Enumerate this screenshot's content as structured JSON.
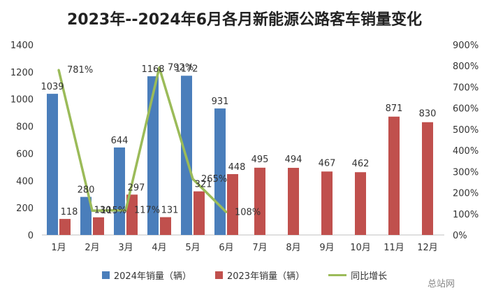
{
  "chart_data": {
    "type": "bar",
    "title": "2023年--2024年6月各月新能源公路客车销量变化",
    "categories": [
      "1月",
      "2月",
      "3月",
      "4月",
      "5月",
      "6月",
      "7月",
      "8月",
      "9月",
      "10月",
      "11月",
      "12月"
    ],
    "series": [
      {
        "name": "2024年销量（辆）",
        "type": "bar",
        "color": "#4a7ebb",
        "values": [
          1039,
          280,
          644,
          1168,
          1172,
          931,
          null,
          null,
          null,
          null,
          null,
          null
        ]
      },
      {
        "name": "2023年销量（辆）",
        "type": "bar",
        "color": "#c0504d",
        "values": [
          118,
          130,
          297,
          131,
          321,
          448,
          495,
          494,
          467,
          462,
          871,
          830
        ]
      },
      {
        "name": "同比增长",
        "type": "line",
        "axis": "right",
        "color": "#9bbb59",
        "values": [
          781,
          115,
          117,
          792,
          265,
          108,
          null,
          null,
          null,
          null,
          null,
          null
        ]
      }
    ],
    "y_left": {
      "min": 0,
      "max": 1400,
      "ticks": [
        0,
        200,
        400,
        600,
        800,
        1000,
        1200,
        1400
      ]
    },
    "y_right": {
      "min": 0,
      "max": 900,
      "ticks": [
        "0%",
        "100%",
        "200%",
        "300%",
        "400%",
        "500%",
        "600%",
        "700%",
        "800%",
        "900%"
      ]
    },
    "grid": false,
    "legend_position": "bottom"
  },
  "watermark": {
    "text": "总站网"
  }
}
